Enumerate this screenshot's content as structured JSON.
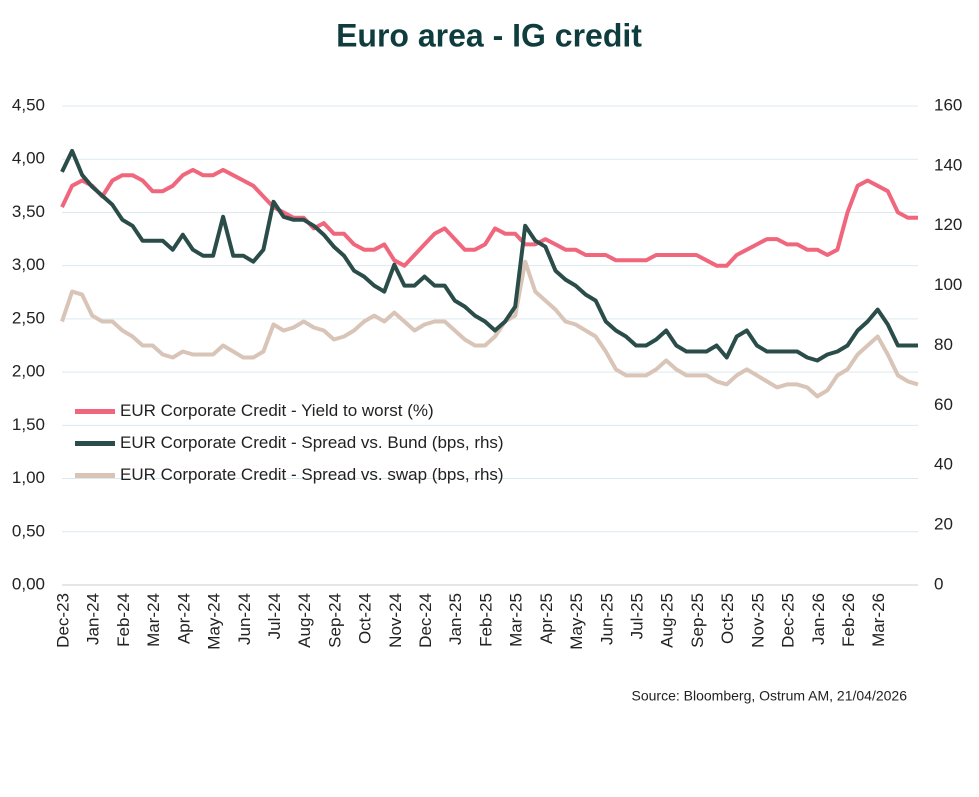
{
  "chart_data": {
    "type": "line",
    "title": "Euro area - IG credit",
    "source": "Source: Bloomberg,  Ostrum AM, 21/04/2026",
    "categories": [
      "Dec-23",
      null,
      null,
      "Jan-24",
      null,
      null,
      "Feb-24",
      null,
      null,
      "Mar-24",
      null,
      null,
      "Apr-24",
      null,
      null,
      "May-24",
      null,
      null,
      "Jun-24",
      null,
      null,
      "Jul-24",
      null,
      null,
      "Aug-24",
      null,
      null,
      "Sep-24",
      null,
      null,
      "Oct-24",
      null,
      null,
      "Nov-24",
      null,
      null,
      "Dec-24",
      null,
      null,
      "Jan-25",
      null,
      null,
      "Feb-25",
      null,
      null,
      "Mar-25",
      null,
      null,
      "Apr-25",
      null,
      null,
      "May-25",
      null,
      null,
      "Jun-25",
      null,
      null,
      "Jul-25",
      null,
      null,
      "Aug-25",
      null,
      null,
      "Sep-25",
      null,
      null,
      "Oct-25",
      null,
      null,
      "Nov-25",
      null,
      null,
      "Dec-25",
      null,
      null,
      "Jan-26",
      null,
      null,
      "Feb-26",
      null,
      null,
      "Mar-26",
      null,
      null,
      null,
      null
    ],
    "series": [
      {
        "name": "EUR Corporate Credit - Yield to worst  (%)",
        "color": "#f0677d",
        "values": [
          3.55,
          3.75,
          3.8,
          3.75,
          3.65,
          3.8,
          3.85,
          3.85,
          3.8,
          3.7,
          3.7,
          3.75,
          3.85,
          3.9,
          3.85,
          3.85,
          3.9,
          3.85,
          3.8,
          3.75,
          3.65,
          3.55,
          3.5,
          3.45,
          3.45,
          3.35,
          3.4,
          3.3,
          3.3,
          3.2,
          3.15,
          3.15,
          3.2,
          3.05,
          3.0,
          3.1,
          3.2,
          3.3,
          3.35,
          3.25,
          3.15,
          3.15,
          3.2,
          3.35,
          3.3,
          3.3,
          3.2,
          3.2,
          3.25,
          3.2,
          3.15,
          3.15,
          3.1,
          3.1,
          3.1,
          3.05,
          3.05,
          3.05,
          3.05,
          3.1,
          3.1,
          3.1,
          3.1,
          3.1,
          3.05,
          3.0,
          3.0,
          3.1,
          3.15,
          3.2,
          3.25,
          3.25,
          3.2,
          3.2,
          3.15,
          3.15,
          3.1,
          3.15,
          3.5,
          3.75,
          3.8,
          3.75,
          3.7,
          3.5,
          3.45,
          3.45
        ]
      },
      {
        "name": "EUR Corporate Credit - Spread vs. Bund  (bps, rhs)",
        "color": "#2b4d4a",
        "axis": "y2",
        "values": [
          138,
          145,
          137,
          133,
          130,
          127,
          122,
          120,
          115,
          115,
          115,
          112,
          117,
          112,
          110,
          110,
          123,
          110,
          110,
          108,
          112,
          128,
          123,
          122,
          122,
          120,
          117,
          113,
          110,
          105,
          103,
          100,
          98,
          107,
          100,
          100,
          103,
          100,
          100,
          95,
          93,
          90,
          88,
          85,
          88,
          93,
          120,
          115,
          113,
          105,
          102,
          100,
          97,
          95,
          88,
          85,
          83,
          80,
          80,
          82,
          85,
          80,
          78,
          78,
          78,
          80,
          76,
          83,
          85,
          80,
          78,
          78,
          78,
          78,
          76,
          75,
          77,
          78,
          80,
          85,
          88,
          92,
          87,
          80,
          80,
          80
        ]
      },
      {
        "name": "EUR Corporate Credit - Spread vs. swap  (bps, rhs)",
        "color": "#d9c4b8",
        "axis": "y2",
        "values": [
          88,
          98,
          97,
          90,
          88,
          88,
          85,
          83,
          80,
          80,
          77,
          76,
          78,
          77,
          77,
          77,
          80,
          78,
          76,
          76,
          78,
          87,
          85,
          86,
          88,
          86,
          85,
          82,
          83,
          85,
          88,
          90,
          88,
          91,
          88,
          85,
          87,
          88,
          88,
          85,
          82,
          80,
          80,
          83,
          88,
          90,
          108,
          98,
          95,
          92,
          88,
          87,
          85,
          83,
          78,
          72,
          70,
          70,
          70,
          72,
          75,
          72,
          70,
          70,
          70,
          68,
          67,
          70,
          72,
          70,
          68,
          66,
          67,
          67,
          66,
          63,
          65,
          70,
          72,
          77,
          80,
          83,
          77,
          70,
          68,
          67
        ]
      }
    ],
    "ylim": [
      0,
      4.5
    ],
    "yticks": [
      {
        "value": 0,
        "label": "0,00"
      },
      {
        "value": 0.5,
        "label": "0,50"
      },
      {
        "value": 1,
        "label": "1,00"
      },
      {
        "value": 1.5,
        "label": "1,50"
      },
      {
        "value": 2,
        "label": "2,00"
      },
      {
        "value": 2.5,
        "label": "2,50"
      },
      {
        "value": 3,
        "label": "3,00"
      },
      {
        "value": 3.5,
        "label": "3,50"
      },
      {
        "value": 4,
        "label": "4,00"
      },
      {
        "value": 4.5,
        "label": "4,50"
      }
    ],
    "y2lim": [
      0,
      160
    ],
    "y2ticks": [
      0,
      20,
      40,
      60,
      80,
      100,
      120,
      140,
      160
    ],
    "grid": true
  }
}
